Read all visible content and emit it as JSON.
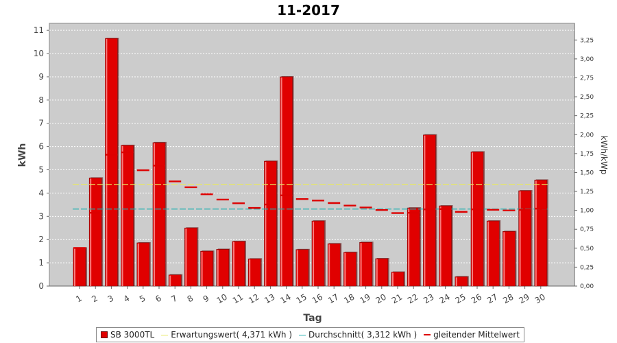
{
  "chart_data": {
    "type": "bar",
    "title": "11-2017",
    "xlabel": "Tag",
    "ylabel": "kWh",
    "ylabel_right": "kWh/kWp",
    "ylim": [
      0,
      11.3
    ],
    "ylim_right": [
      0,
      3.47
    ],
    "y_ticks": [
      0,
      1,
      2,
      3,
      4,
      5,
      6,
      7,
      8,
      9,
      10,
      11
    ],
    "y_ticks_right": [
      "0,00",
      "0,25",
      "0,50",
      "0,75",
      "1,00",
      "1,25",
      "1,50",
      "1,75",
      "2,00",
      "2,25",
      "2,50",
      "2,75",
      "3,00",
      "3,25"
    ],
    "categories": [
      "1",
      "2",
      "3",
      "4",
      "5",
      "6",
      "7",
      "8",
      "9",
      "10",
      "11",
      "12",
      "13",
      "14",
      "15",
      "16",
      "17",
      "18",
      "19",
      "20",
      "21",
      "22",
      "23",
      "24",
      "25",
      "26",
      "27",
      "28",
      "29",
      "30"
    ],
    "series": [
      {
        "name": "SB 3000TL",
        "type": "bar",
        "color": "#e00000",
        "values": [
          1.64,
          4.65,
          10.65,
          6.05,
          1.86,
          6.17,
          0.48,
          2.5,
          1.5,
          1.58,
          1.92,
          1.17,
          5.37,
          9.0,
          1.57,
          2.8,
          1.82,
          1.45,
          1.88,
          1.18,
          0.6,
          3.36,
          6.5,
          3.45,
          0.4,
          5.77,
          2.8,
          2.35,
          4.1,
          4.56
        ]
      },
      {
        "name": "gleitender Mittelwert",
        "type": "step",
        "color": "#dd0000",
        "values": [
          1.64,
          3.15,
          5.65,
          5.75,
          4.98,
          5.18,
          4.5,
          4.25,
          3.95,
          3.72,
          3.56,
          3.36,
          3.51,
          3.9,
          3.74,
          3.68,
          3.57,
          3.46,
          3.38,
          3.27,
          3.14,
          3.15,
          3.3,
          3.31,
          3.19,
          3.3,
          3.28,
          3.25,
          3.28,
          3.33
        ]
      }
    ],
    "reference_lines": [
      {
        "name": "Erwartungswert",
        "label": "Erwartungswert( 4,371 kWh )",
        "value": 4.371,
        "color": "#e8e860",
        "style": "dashed"
      },
      {
        "name": "Durchschnitt",
        "label": "Durchschnitt( 3,312 kWh )",
        "value": 3.312,
        "color": "#20b0b0",
        "style": "dashed"
      }
    ],
    "grid": true,
    "legend_position": "bottom"
  },
  "legend": {
    "bar": "SB 3000TL",
    "expected": "Erwartungswert( 4,371 kWh )",
    "average": "Durchschnitt( 3,312 kWh )",
    "moving": "gleitender Mittelwert"
  },
  "colors": {
    "plot_bg": "#cccccc",
    "bar": "#e00000",
    "expected": "#e8e860",
    "average": "#20b0b0",
    "moving": "#dd0000"
  }
}
